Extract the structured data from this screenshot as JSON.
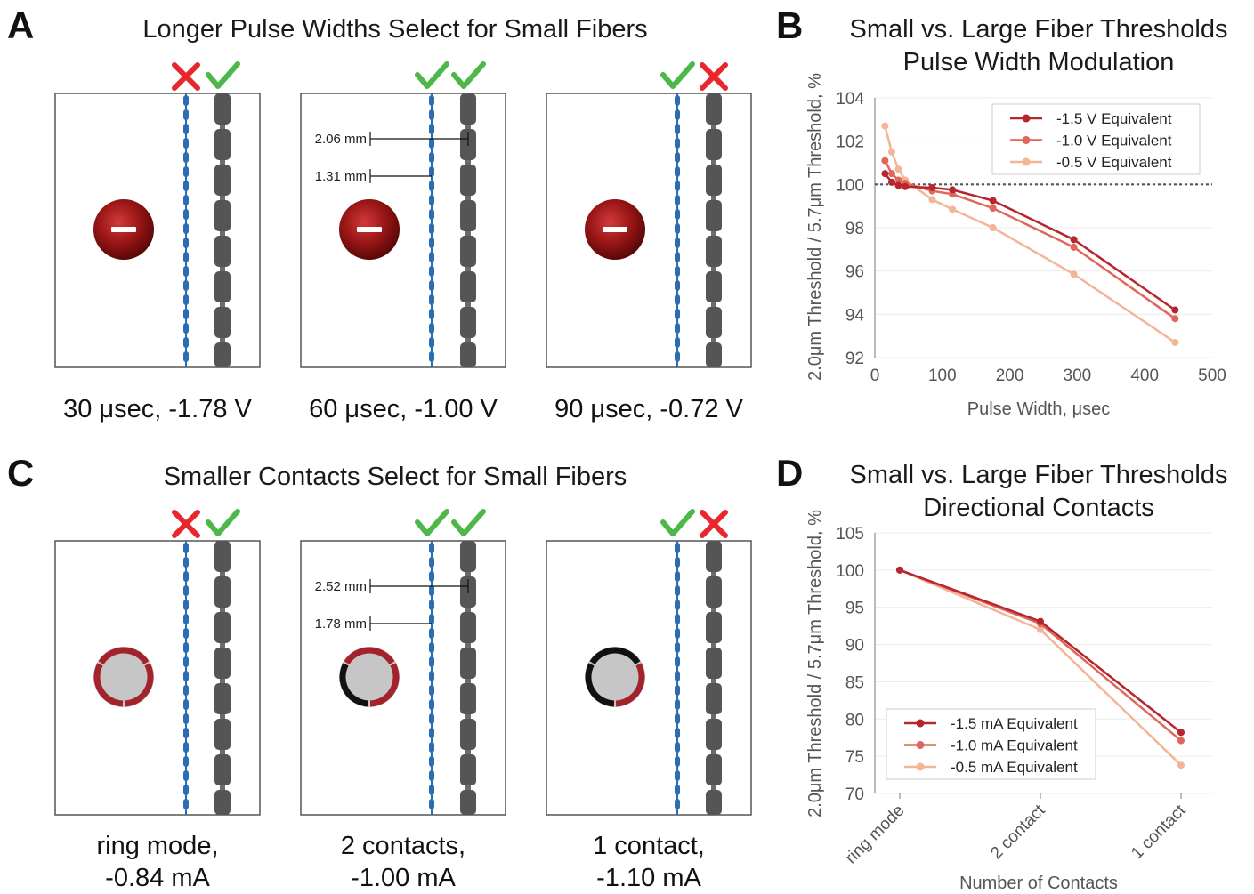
{
  "panels": {
    "A": {
      "letter": "A",
      "title": "Longer Pulse Widths Select for Small Fibers",
      "boxes": [
        {
          "caption_lines": [
            "30 μsec, -1.78 V"
          ],
          "marks": [
            "cross",
            "check"
          ],
          "electrode": "cathode"
        },
        {
          "caption_lines": [
            "60 μsec, -1.00 V"
          ],
          "marks": [
            "check",
            "check"
          ],
          "electrode": "cathode",
          "distances": [
            "2.06 mm",
            "1.31 mm"
          ]
        },
        {
          "caption_lines": [
            "90 μsec, -0.72 V"
          ],
          "marks": [
            "check",
            "cross"
          ],
          "electrode": "cathode"
        }
      ]
    },
    "C": {
      "letter": "C",
      "title": "Smaller Contacts Select for Small Fibers",
      "boxes": [
        {
          "caption_lines": [
            "ring mode,",
            "-0.84 mA"
          ],
          "marks": [
            "cross",
            "check"
          ],
          "electrode": "ring-mode"
        },
        {
          "caption_lines": [
            "2 contacts,",
            "-1.00 mA"
          ],
          "marks": [
            "check",
            "check"
          ],
          "electrode": "2-contacts",
          "distances": [
            "2.52 mm",
            "1.78 mm"
          ]
        },
        {
          "caption_lines": [
            "1 contact,",
            "-1.10 mA"
          ],
          "marks": [
            "check",
            "cross"
          ],
          "electrode": "1-contact"
        }
      ]
    }
  },
  "colors": {
    "small_fiber": "#2a6db5",
    "large_fiber": "#555555",
    "check": "#4db848",
    "cross": "#e8262b",
    "active_contact": "#a3222b",
    "inactive_contact": "#111111",
    "electrode_body": "#c6c6c6"
  },
  "chart_data": [
    {
      "panel": "B",
      "type": "line",
      "title_lines": [
        "Small vs. Large Fiber Thresholds",
        "Pulse Width Modulation"
      ],
      "xlabel": "Pulse Width, μsec",
      "ylabel": "2.0μm Threshold / 5.7μm Threshold, %",
      "xlim": [
        0,
        500
      ],
      "ylim": [
        92,
        104
      ],
      "xticks": [
        0,
        100,
        200,
        300,
        400,
        500
      ],
      "yticks": [
        92,
        94,
        96,
        98,
        100,
        102,
        104
      ],
      "reference_line": 100,
      "grid": "horizontal",
      "legend_position": "top-right",
      "series": [
        {
          "name": "-1.5 V Equivalent",
          "color": "#b5262e",
          "x": [
            15,
            25,
            35,
            45,
            85,
            115,
            175,
            295,
            445
          ],
          "y": [
            100.5,
            100.1,
            99.95,
            99.9,
            99.85,
            99.75,
            99.25,
            97.45,
            94.2
          ]
        },
        {
          "name": "-1.0 V Equivalent",
          "color": "#e0665a",
          "x": [
            15,
            25,
            35,
            45,
            85,
            115,
            175,
            295,
            445
          ],
          "y": [
            101.1,
            100.5,
            100.2,
            100.05,
            99.7,
            99.55,
            98.9,
            97.1,
            93.8
          ]
        },
        {
          "name": "-0.5 V Equivalent",
          "color": "#f4b596",
          "x": [
            15,
            25,
            35,
            45,
            85,
            115,
            175,
            295,
            445
          ],
          "y": [
            102.7,
            101.5,
            100.7,
            100.2,
            99.3,
            98.85,
            98.0,
            95.85,
            92.7
          ]
        }
      ]
    },
    {
      "panel": "D",
      "type": "line",
      "title_lines": [
        "Small vs. Large Fiber Thresholds",
        "Directional Contacts"
      ],
      "xlabel": "Number of Contacts",
      "ylabel": "2.0μm Threshold / 5.7μm Threshold, %",
      "categories": [
        "ring mode",
        "2 contact",
        "1 contact"
      ],
      "ylim": [
        70,
        105
      ],
      "yticks": [
        70,
        75,
        80,
        85,
        90,
        95,
        100,
        105
      ],
      "grid": "horizontal",
      "legend_position": "bottom-left",
      "series": [
        {
          "name": "-1.5 mA Equivalent",
          "color": "#b5262e",
          "values": [
            100,
            93.1,
            78.2
          ]
        },
        {
          "name": "-1.0 mA Equivalent",
          "color": "#e0665a",
          "values": [
            100,
            92.8,
            77.1
          ]
        },
        {
          "name": "-0.5 mA Equivalent",
          "color": "#f4b596",
          "values": [
            100,
            92.0,
            73.8
          ]
        }
      ]
    }
  ]
}
